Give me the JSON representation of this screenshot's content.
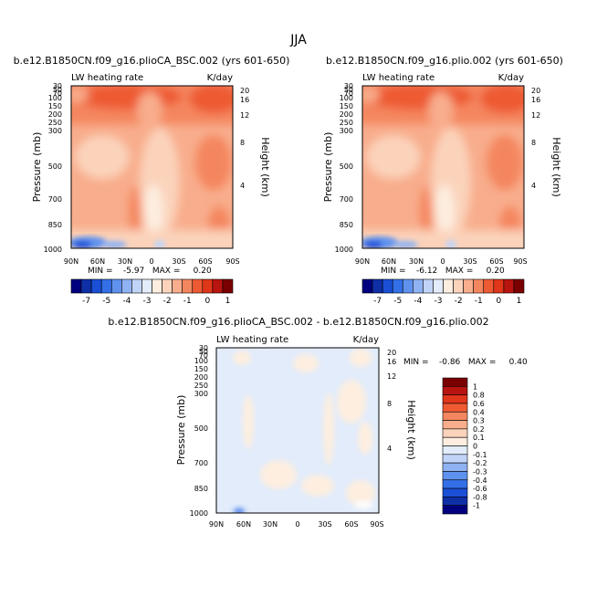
{
  "figure": {
    "title": "JJA"
  },
  "chart_data": [
    {
      "type": "heatmap",
      "title": "b.e12.B1850CN.f09_g16.plioCA_BSC.002 (yrs 601-650)",
      "subtitle_left": "LW heating rate",
      "subtitle_right": "K/day",
      "ylabel": "Pressure (mb)",
      "ylabel_right": "Height (km)",
      "x_ticks": [
        "90N",
        "60N",
        "30N",
        "0",
        "30S",
        "60S",
        "90S"
      ],
      "y_ticks": [
        "30",
        "50",
        "70",
        "100",
        "150",
        "200",
        "250",
        "300",
        "500",
        "700",
        "850",
        "1000"
      ],
      "y_ticks_right": [
        "20",
        "16",
        "12",
        "8",
        "4"
      ],
      "min_max_text": "MIN =    -5.97   MAX =     0.20",
      "colorbar": {
        "labels": [
          "-7",
          "-5",
          "-4",
          "-3",
          "-2",
          "-1",
          "0",
          "1"
        ],
        "colors": [
          "#00007f",
          "#0f2fa6",
          "#1a4fd6",
          "#3370e8",
          "#5f92ee",
          "#8fb2f2",
          "#c0d4f7",
          "#e2ecfb",
          "#fdeee0",
          "#fbd3bb",
          "#f8ad8c",
          "#f4865f",
          "#ee5a33",
          "#e0361a",
          "#b81410",
          "#7a0000"
        ]
      },
      "ylim": [
        1000,
        30
      ],
      "xlim": [
        "90N",
        "90S"
      ]
    },
    {
      "type": "heatmap",
      "title": "b.e12.B1850CN.f09_g16.plio.002 (yrs 601-650)",
      "subtitle_left": "LW heating rate",
      "subtitle_right": "K/day",
      "ylabel": "Pressure (mb)",
      "ylabel_right": "Height (km)",
      "x_ticks": [
        "90N",
        "60N",
        "30N",
        "0",
        "30S",
        "60S",
        "90S"
      ],
      "y_ticks": [
        "30",
        "50",
        "70",
        "100",
        "150",
        "200",
        "250",
        "300",
        "500",
        "700",
        "850",
        "1000"
      ],
      "y_ticks_right": [
        "20",
        "16",
        "12",
        "8",
        "4"
      ],
      "min_max_text": "MIN =    -6.12   MAX =     0.20",
      "colorbar": {
        "labels": [
          "-7",
          "-5",
          "-4",
          "-3",
          "-2",
          "-1",
          "0",
          "1"
        ],
        "colors": [
          "#00007f",
          "#0f2fa6",
          "#1a4fd6",
          "#3370e8",
          "#5f92ee",
          "#8fb2f2",
          "#c0d4f7",
          "#e2ecfb",
          "#fdeee0",
          "#fbd3bb",
          "#f8ad8c",
          "#f4865f",
          "#ee5a33",
          "#e0361a",
          "#b81410",
          "#7a0000"
        ]
      },
      "ylim": [
        1000,
        30
      ],
      "xlim": [
        "90N",
        "90S"
      ]
    },
    {
      "type": "heatmap",
      "title": "b.e12.B1850CN.f09_g16.plioCA_BSC.002 - b.e12.B1850CN.f09_g16.plio.002",
      "subtitle_left": "LW heating rate",
      "subtitle_right": "K/day",
      "ylabel": "Pressure (mb)",
      "ylabel_right": "Height (km)",
      "x_ticks": [
        "90N",
        "60N",
        "30N",
        "0",
        "30S",
        "60S",
        "90S"
      ],
      "y_ticks": [
        "30",
        "50",
        "70",
        "100",
        "150",
        "200",
        "250",
        "300",
        "500",
        "700",
        "850",
        "1000"
      ],
      "y_ticks_right": [
        "20",
        "16",
        "12",
        "8",
        "4"
      ],
      "min_max_text": "MIN =    -0.86   MAX =     0.40",
      "colorbar": {
        "labels": [
          "1",
          "0.8",
          "0.6",
          "0.4",
          "0.3",
          "0.2",
          "0.1",
          "0",
          "-0.1",
          "-0.2",
          "-0.3",
          "-0.4",
          "-0.6",
          "-0.8",
          "-1"
        ],
        "colors": [
          "#7a0000",
          "#b81410",
          "#e0361a",
          "#ee5a33",
          "#f4865f",
          "#f8ad8c",
          "#fbd3bb",
          "#fdeee0",
          "#e2ecfb",
          "#c0d4f7",
          "#8fb2f2",
          "#5f92ee",
          "#3370e8",
          "#1a4fd6",
          "#0f2fa6",
          "#00007f"
        ]
      },
      "ylim": [
        1000,
        30
      ],
      "xlim": [
        "90N",
        "90S"
      ]
    }
  ]
}
